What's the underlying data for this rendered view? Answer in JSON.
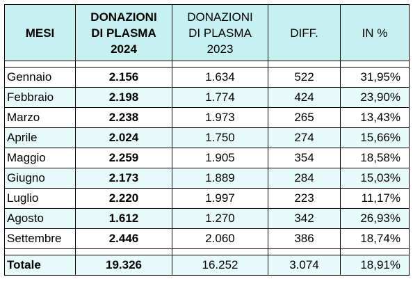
{
  "headers": {
    "mesi": "MESI",
    "don2024": [
      "DONAZIONI",
      "DI PLASMA",
      "2024"
    ],
    "don2023": [
      "DONAZIONI",
      "DI PLASMA",
      "2023"
    ],
    "diff": "DIFF.",
    "pct": "IN %"
  },
  "rows": [
    {
      "mese": "Gennaio",
      "v2024": "2.156",
      "v2023": "1.634",
      "diff": "522",
      "pct": "31,95%"
    },
    {
      "mese": "Febbraio",
      "v2024": "2.198",
      "v2023": "1.774",
      "diff": "424",
      "pct": "23,90%"
    },
    {
      "mese": "Marzo",
      "v2024": "2.238",
      "v2023": "1.973",
      "diff": "265",
      "pct": "13,43%"
    },
    {
      "mese": "Aprile",
      "v2024": "2.024",
      "v2023": "1.750",
      "diff": "274",
      "pct": "15,66%"
    },
    {
      "mese": "Maggio",
      "v2024": "2.259",
      "v2023": "1.905",
      "diff": "354",
      "pct": "18,58%"
    },
    {
      "mese": "Giugno",
      "v2024": "2.173",
      "v2023": "1.889",
      "diff": "284",
      "pct": "15,03%"
    },
    {
      "mese": "Luglio",
      "v2024": "2.220",
      "v2023": "1.997",
      "diff": "223",
      "pct": "11,17%"
    },
    {
      "mese": "Agosto",
      "v2024": "1.612",
      "v2023": "1.270",
      "diff": "342",
      "pct": "26,93%"
    },
    {
      "mese": "Settembre",
      "v2024": "2.446",
      "v2023": "2.060",
      "diff": "386",
      "pct": "18,74%"
    }
  ],
  "totale": {
    "mese": "Totale",
    "v2024": "19.326",
    "v2023": "16.252",
    "diff": "3.074",
    "pct": "18,91%"
  },
  "colors": {
    "header_bg": "#c7f0f0",
    "alt_row_bg": "#e6fafa",
    "border": "#000000"
  }
}
